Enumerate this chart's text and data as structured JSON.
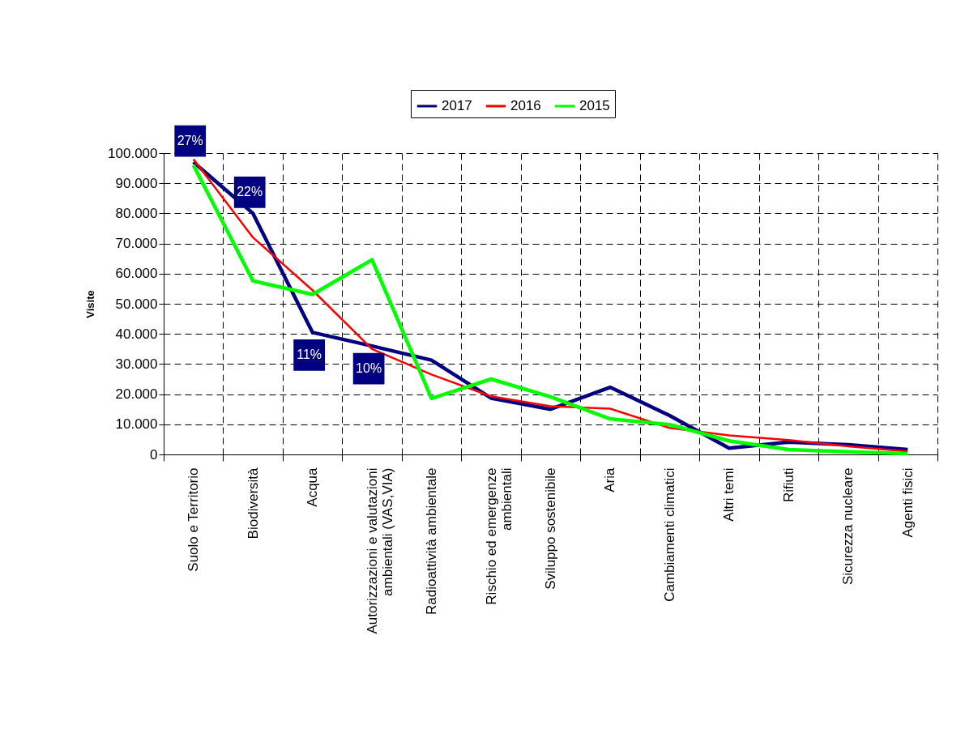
{
  "chart_data": {
    "type": "line",
    "ylabel": "Visite",
    "categories": [
      "Suolo e Territorio",
      "Biodiversità",
      "Acqua",
      "Autorizzazioni e valutazioni ambientali (VAS,VIA)",
      "Radioattività ambientale",
      "Rischio ed emergenze ambientali",
      "Sviluppo sostenibile",
      "Aria",
      "Cambiamenti climatici",
      "Altri temi",
      "Rifiuti",
      "Sicurezza nucleare",
      "Agenti fisici"
    ],
    "series": [
      {
        "name": "2017",
        "color": "#000080",
        "values": [
          97000,
          80000,
          40500,
          36000,
          31300,
          18700,
          15000,
          22300,
          12900,
          2100,
          4100,
          3200,
          1600
        ]
      },
      {
        "name": "2016",
        "color": "#ff0000",
        "values": [
          98000,
          72000,
          54500,
          35000,
          26500,
          19300,
          16000,
          15200,
          8800,
          6300,
          4800,
          2700,
          1000
        ]
      },
      {
        "name": "2015",
        "color": "#00ff00",
        "values": [
          96000,
          57600,
          53100,
          64600,
          18600,
          25000,
          19100,
          11800,
          9900,
          4500,
          1600,
          900,
          300
        ]
      }
    ],
    "ylim": [
      0,
      100000
    ],
    "yticks": [
      0,
      {
        "value": 10000,
        "label": "10.000"
      },
      {
        "value": 20000,
        "label": "20.000"
      },
      {
        "value": 30000,
        "label": "30.000"
      },
      {
        "value": 40000,
        "label": "40.000"
      },
      {
        "value": 50000,
        "label": "50.000"
      },
      {
        "value": 60000,
        "label": "60.000"
      },
      {
        "value": 70000,
        "label": "70.000"
      },
      {
        "value": 80000,
        "label": "80.000"
      },
      {
        "value": 90000,
        "label": "90.000"
      },
      {
        "value": 100000,
        "label": "100.000"
      }
    ],
    "annotations": [
      {
        "text": "27%",
        "x": "Suolo e Territorio",
        "y": 97000
      },
      {
        "text": "22%",
        "x": "Biodiversità",
        "y": 80000
      },
      {
        "text": "11%",
        "x": "Acqua",
        "y": 40500
      },
      {
        "text": "10%",
        "x": "Autorizzazioni e valutazioni ambientali (VAS,VIA)",
        "y": 36000
      }
    ],
    "grid": true,
    "legend": "top",
    "line_style": "solid",
    "marker": "none"
  }
}
